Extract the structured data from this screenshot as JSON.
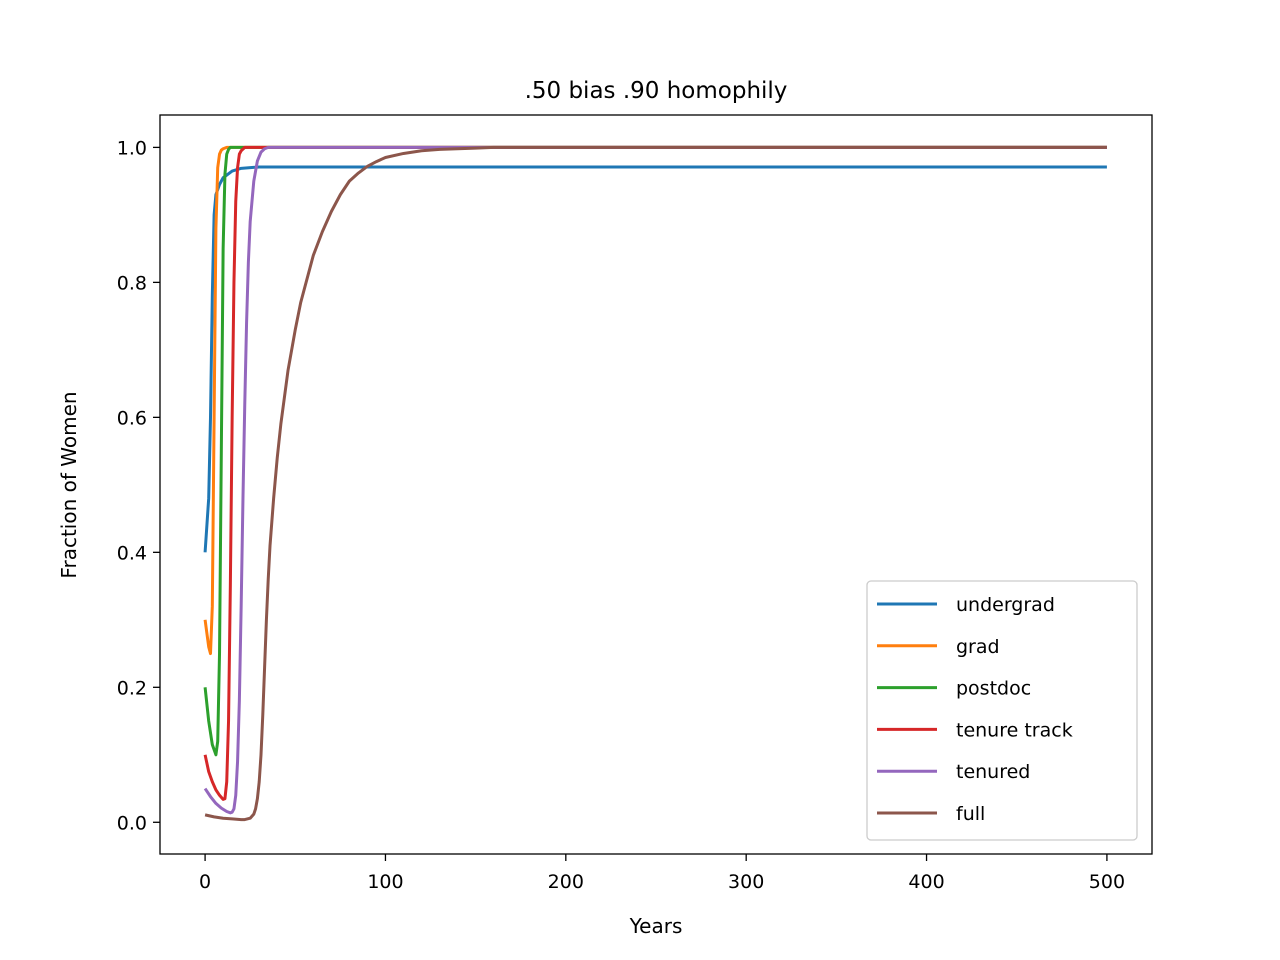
{
  "chart_data": {
    "type": "line",
    "title": ".50 bias .90 homophily",
    "xlabel": "Years",
    "ylabel": "Fraction of Women",
    "xlim": [
      -25,
      525
    ],
    "ylim": [
      -0.047,
      1.048
    ],
    "xticks": [
      0,
      100,
      200,
      300,
      400,
      500
    ],
    "xtick_labels": [
      "0",
      "100",
      "200",
      "300",
      "400",
      "500"
    ],
    "yticks": [
      0.0,
      0.2,
      0.4,
      0.6,
      0.8,
      1.0
    ],
    "ytick_labels": [
      "0.0",
      "0.2",
      "0.4",
      "0.6",
      "0.8",
      "1.0"
    ],
    "grid": false,
    "legend_position": "lower-right",
    "series": [
      {
        "name": "undergrad",
        "color": "#1f77b4",
        "x": [
          0,
          2,
          3,
          4,
          5,
          6,
          8,
          10,
          15,
          20,
          30,
          40,
          60,
          100,
          200,
          300,
          400,
          500
        ],
        "y": [
          0.4,
          0.48,
          0.6,
          0.78,
          0.9,
          0.93,
          0.945,
          0.955,
          0.965,
          0.969,
          0.971,
          0.971,
          0.971,
          0.971,
          0.971,
          0.971,
          0.971,
          0.971
        ]
      },
      {
        "name": "grad",
        "color": "#ff7f0e",
        "x": [
          0,
          1,
          2,
          3,
          4,
          5,
          6,
          7,
          8,
          9,
          10,
          12,
          15,
          20,
          40,
          100,
          200,
          300,
          400,
          500
        ],
        "y": [
          0.3,
          0.28,
          0.26,
          0.25,
          0.32,
          0.6,
          0.88,
          0.97,
          0.99,
          0.996,
          0.998,
          1.0,
          1.0,
          1.0,
          1.0,
          1.0,
          1.0,
          1.0,
          1.0,
          1.0
        ]
      },
      {
        "name": "postdoc",
        "color": "#2ca02c",
        "x": [
          0,
          2,
          4,
          6,
          7,
          8,
          9,
          10,
          11,
          12,
          13,
          14,
          16,
          20,
          40,
          100,
          200,
          300,
          400,
          500
        ],
        "y": [
          0.2,
          0.15,
          0.115,
          0.1,
          0.12,
          0.25,
          0.55,
          0.85,
          0.96,
          0.99,
          0.997,
          1.0,
          1.0,
          1.0,
          1.0,
          1.0,
          1.0,
          1.0,
          1.0,
          1.0
        ]
      },
      {
        "name": "tenure track",
        "color": "#d62728",
        "x": [
          0,
          2,
          4,
          6,
          8,
          10,
          11,
          12,
          13,
          14,
          15,
          16,
          17,
          18,
          19,
          20,
          22,
          25,
          30,
          100,
          200,
          300,
          400,
          500
        ],
        "y": [
          0.1,
          0.075,
          0.06,
          0.048,
          0.04,
          0.034,
          0.035,
          0.06,
          0.15,
          0.35,
          0.6,
          0.8,
          0.92,
          0.97,
          0.99,
          0.995,
          1.0,
          1.0,
          1.0,
          1.0,
          1.0,
          1.0,
          1.0,
          1.0
        ]
      },
      {
        "name": "tenured",
        "color": "#9467bd",
        "x": [
          0,
          3,
          6,
          9,
          12,
          14,
          15,
          16,
          17,
          18,
          19,
          20,
          21,
          22,
          23,
          24,
          25,
          27,
          29,
          31,
          33,
          35,
          40,
          100,
          200,
          300,
          400,
          500
        ],
        "y": [
          0.05,
          0.038,
          0.028,
          0.021,
          0.016,
          0.014,
          0.015,
          0.02,
          0.04,
          0.09,
          0.18,
          0.32,
          0.48,
          0.62,
          0.74,
          0.83,
          0.89,
          0.95,
          0.98,
          0.993,
          0.998,
          1.0,
          1.0,
          1.0,
          1.0,
          1.0,
          1.0,
          1.0
        ]
      },
      {
        "name": "full",
        "color": "#8c564b",
        "x": [
          0,
          5,
          10,
          15,
          20,
          22,
          25,
          27,
          28,
          29,
          30,
          31,
          32,
          33,
          34,
          35,
          36,
          38,
          40,
          42,
          44,
          46,
          48,
          50,
          53,
          56,
          60,
          65,
          70,
          75,
          80,
          85,
          90,
          95,
          100,
          110,
          120,
          130,
          140,
          150,
          160,
          180,
          200,
          300,
          400,
          500
        ],
        "y": [
          0.011,
          0.008,
          0.006,
          0.005,
          0.004,
          0.004,
          0.006,
          0.012,
          0.02,
          0.035,
          0.06,
          0.1,
          0.16,
          0.23,
          0.3,
          0.36,
          0.41,
          0.48,
          0.54,
          0.59,
          0.63,
          0.67,
          0.7,
          0.73,
          0.77,
          0.8,
          0.84,
          0.875,
          0.905,
          0.93,
          0.95,
          0.962,
          0.972,
          0.979,
          0.985,
          0.991,
          0.995,
          0.997,
          0.998,
          0.999,
          1.0,
          1.0,
          1.0,
          1.0,
          1.0,
          1.0
        ]
      }
    ]
  }
}
